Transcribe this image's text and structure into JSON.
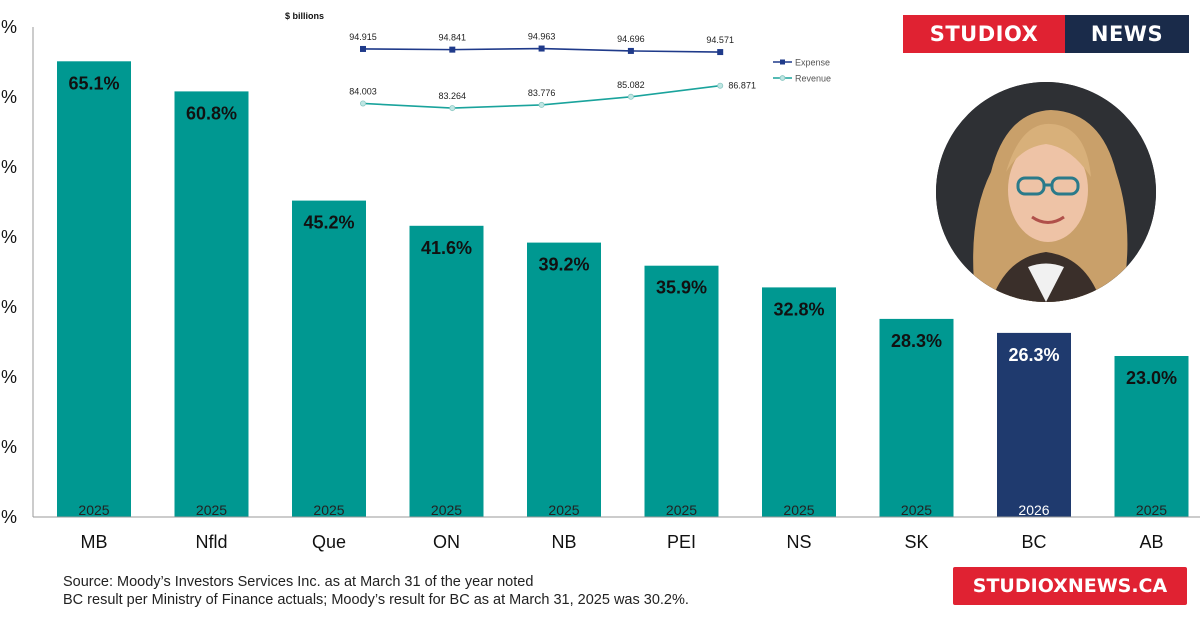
{
  "brand": {
    "left": "STUDIOX",
    "right": "NEWS",
    "url": "STUDIOXNEWS.CA"
  },
  "notes": {
    "source": "Source: Moody’s Investors Services Inc. as at March 31 of the year noted",
    "bc_note": "BC result per Ministry of Finance actuals; Moody’s result for BC as at March 31, 2025 was 30.2%."
  },
  "chart_data": [
    {
      "type": "bar",
      "categories": [
        "MB",
        "Nfld",
        "Que",
        "ON",
        "NB",
        "PEI",
        "NS",
        "SK",
        "BC",
        "AB"
      ],
      "values": [
        65.1,
        60.8,
        45.2,
        41.6,
        39.2,
        35.9,
        32.8,
        28.3,
        26.3,
        23.0
      ],
      "value_labels": [
        "65.1%",
        "60.8%",
        "45.2%",
        "41.6%",
        "39.2%",
        "35.9%",
        "32.8%",
        "28.3%",
        "26.3%",
        "23.0%"
      ],
      "years": [
        "2025",
        "2025",
        "2025",
        "2025",
        "2025",
        "2025",
        "2025",
        "2025",
        "2026",
        "2025"
      ],
      "highlight": "BC",
      "colors": {
        "default": "#009891",
        "highlight": "#1f3a6e"
      },
      "ylim": [
        0,
        70
      ],
      "ytick_label_fragments": [
        "%",
        "%",
        "%",
        "%",
        "%",
        "%",
        "%",
        "%"
      ],
      "grid": false
    },
    {
      "type": "line",
      "title": "$ billions",
      "series": [
        {
          "name": "Expense",
          "values": [
            94.915,
            94.841,
            94.963,
            94.696,
            94.571
          ],
          "labels": [
            "94.915",
            "94.841",
            "94.963",
            "94.696",
            "94.571"
          ],
          "color": "#1f3a8a"
        },
        {
          "name": "Revenue",
          "values": [
            84.003,
            83.264,
            83.776,
            85.082,
            86.871
          ],
          "labels": [
            "84.003",
            "83.264",
            "83.776",
            "85.082",
            "86.871"
          ],
          "color": "#1aa39c"
        }
      ],
      "legend": "right"
    }
  ]
}
